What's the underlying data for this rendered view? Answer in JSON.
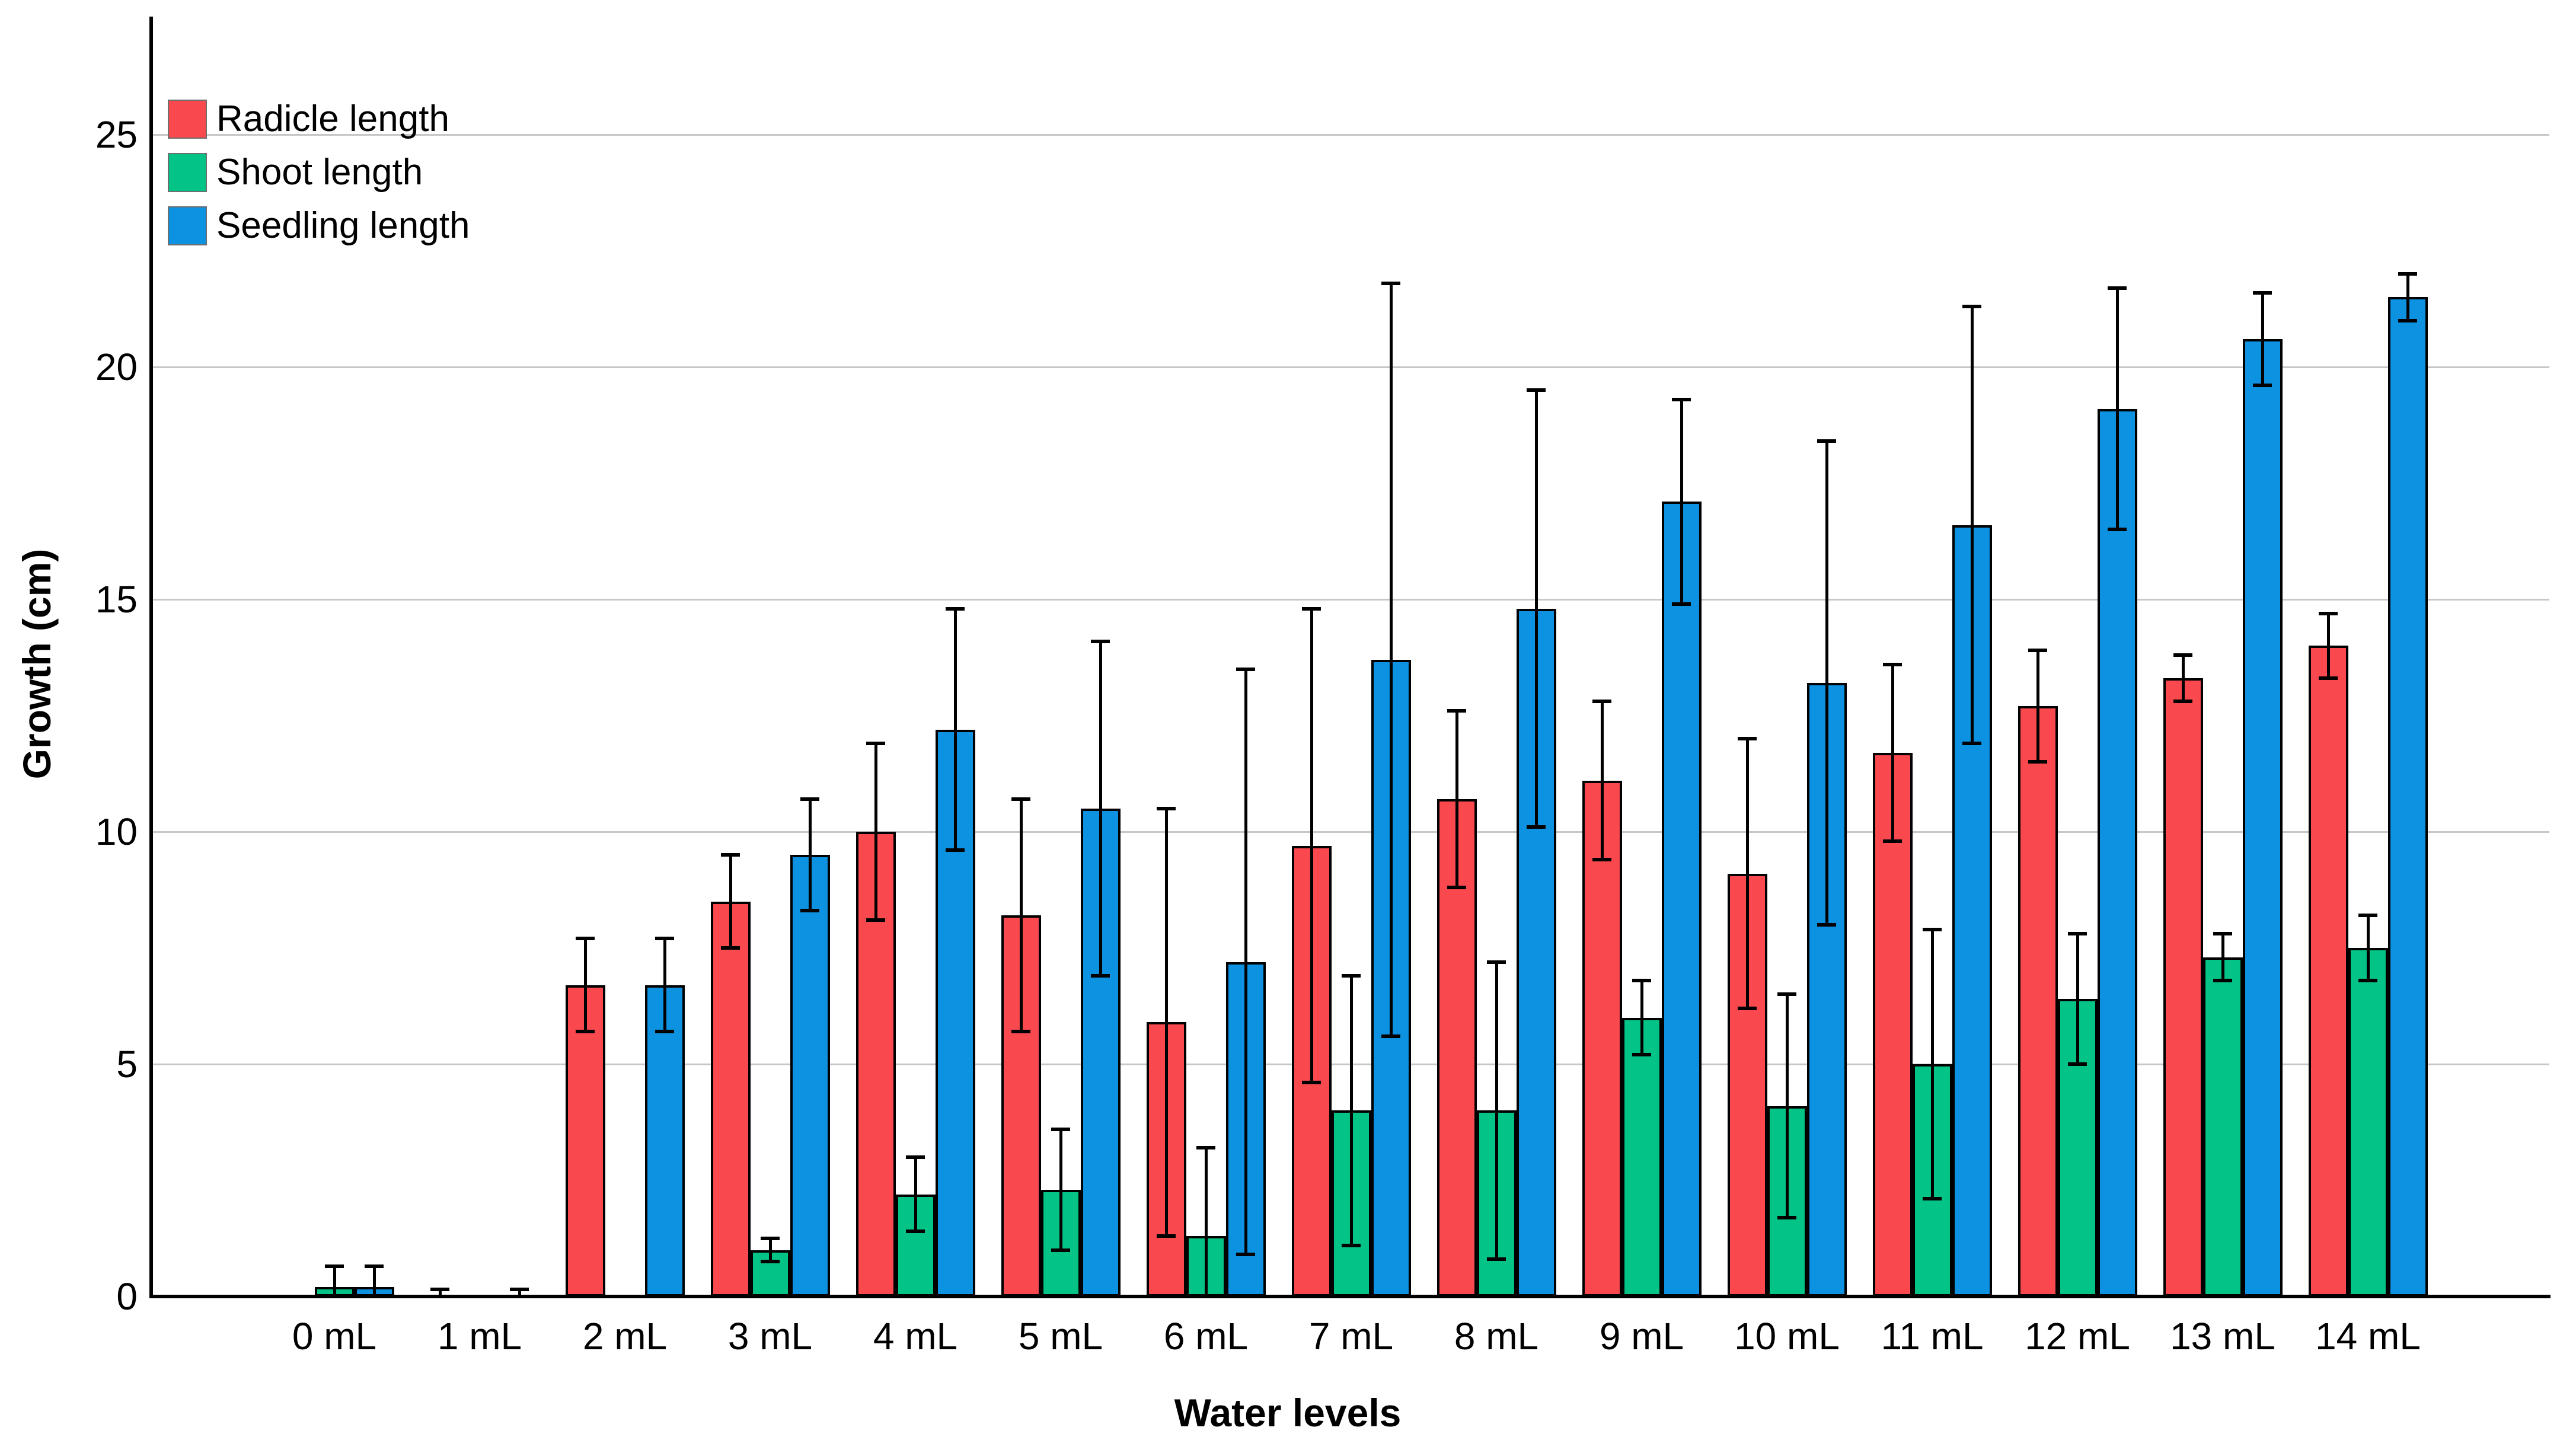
{
  "chart_data": {
    "type": "bar",
    "title": "",
    "xlabel": "Water levels",
    "ylabel": "Growth (cm)",
    "categories": [
      "0 mL",
      "1 mL",
      "2 mL",
      "3 mL",
      "4 mL",
      "5 mL",
      "6 mL",
      "7 mL",
      "8 mL",
      "9 mL",
      "10 mL",
      "11 mL",
      "12 mL",
      "13 mL",
      "14 mL"
    ],
    "series": [
      {
        "name": "Radicle length",
        "color": "#F9494F",
        "values": [
          0,
          0.05,
          6.7,
          8.5,
          10.0,
          8.2,
          5.9,
          9.7,
          10.7,
          11.1,
          9.1,
          11.7,
          12.7,
          13.3,
          14.0
        ],
        "errors": [
          0,
          0.1,
          1.0,
          1.0,
          1.9,
          2.5,
          4.6,
          5.1,
          1.9,
          1.7,
          2.9,
          1.9,
          1.2,
          0.5,
          0.7
        ]
      },
      {
        "name": "Shoot length",
        "color": "#04C386",
        "values": [
          0.2,
          0,
          0,
          1.0,
          2.2,
          2.3,
          1.3,
          4.0,
          4.0,
          6.0,
          4.1,
          5.0,
          6.4,
          7.3,
          7.5
        ],
        "errors": [
          0.45,
          0,
          0,
          0.25,
          0.8,
          1.3,
          1.9,
          2.9,
          3.2,
          0.8,
          2.4,
          2.9,
          1.4,
          0.5,
          0.7
        ]
      },
      {
        "name": "Seedling length",
        "color": "#0D92E2",
        "values": [
          0.2,
          0.05,
          6.7,
          9.5,
          12.2,
          10.5,
          7.2,
          13.7,
          14.8,
          17.1,
          13.2,
          16.6,
          19.1,
          20.6,
          21.5
        ],
        "errors": [
          0.45,
          0.1,
          1.0,
          1.2,
          2.6,
          3.6,
          6.3,
          8.1,
          4.7,
          2.2,
          5.2,
          4.7,
          2.6,
          1.0,
          0.5
        ]
      }
    ],
    "yticks": [
      0,
      5,
      10,
      15,
      20,
      25
    ],
    "ylim": [
      0,
      27.5
    ],
    "grid": true,
    "legend_position": "top-left",
    "error_bars": true,
    "colors": {
      "axis": "#000000",
      "gridline": "#c7c7c7",
      "background": "#ffffff"
    }
  }
}
